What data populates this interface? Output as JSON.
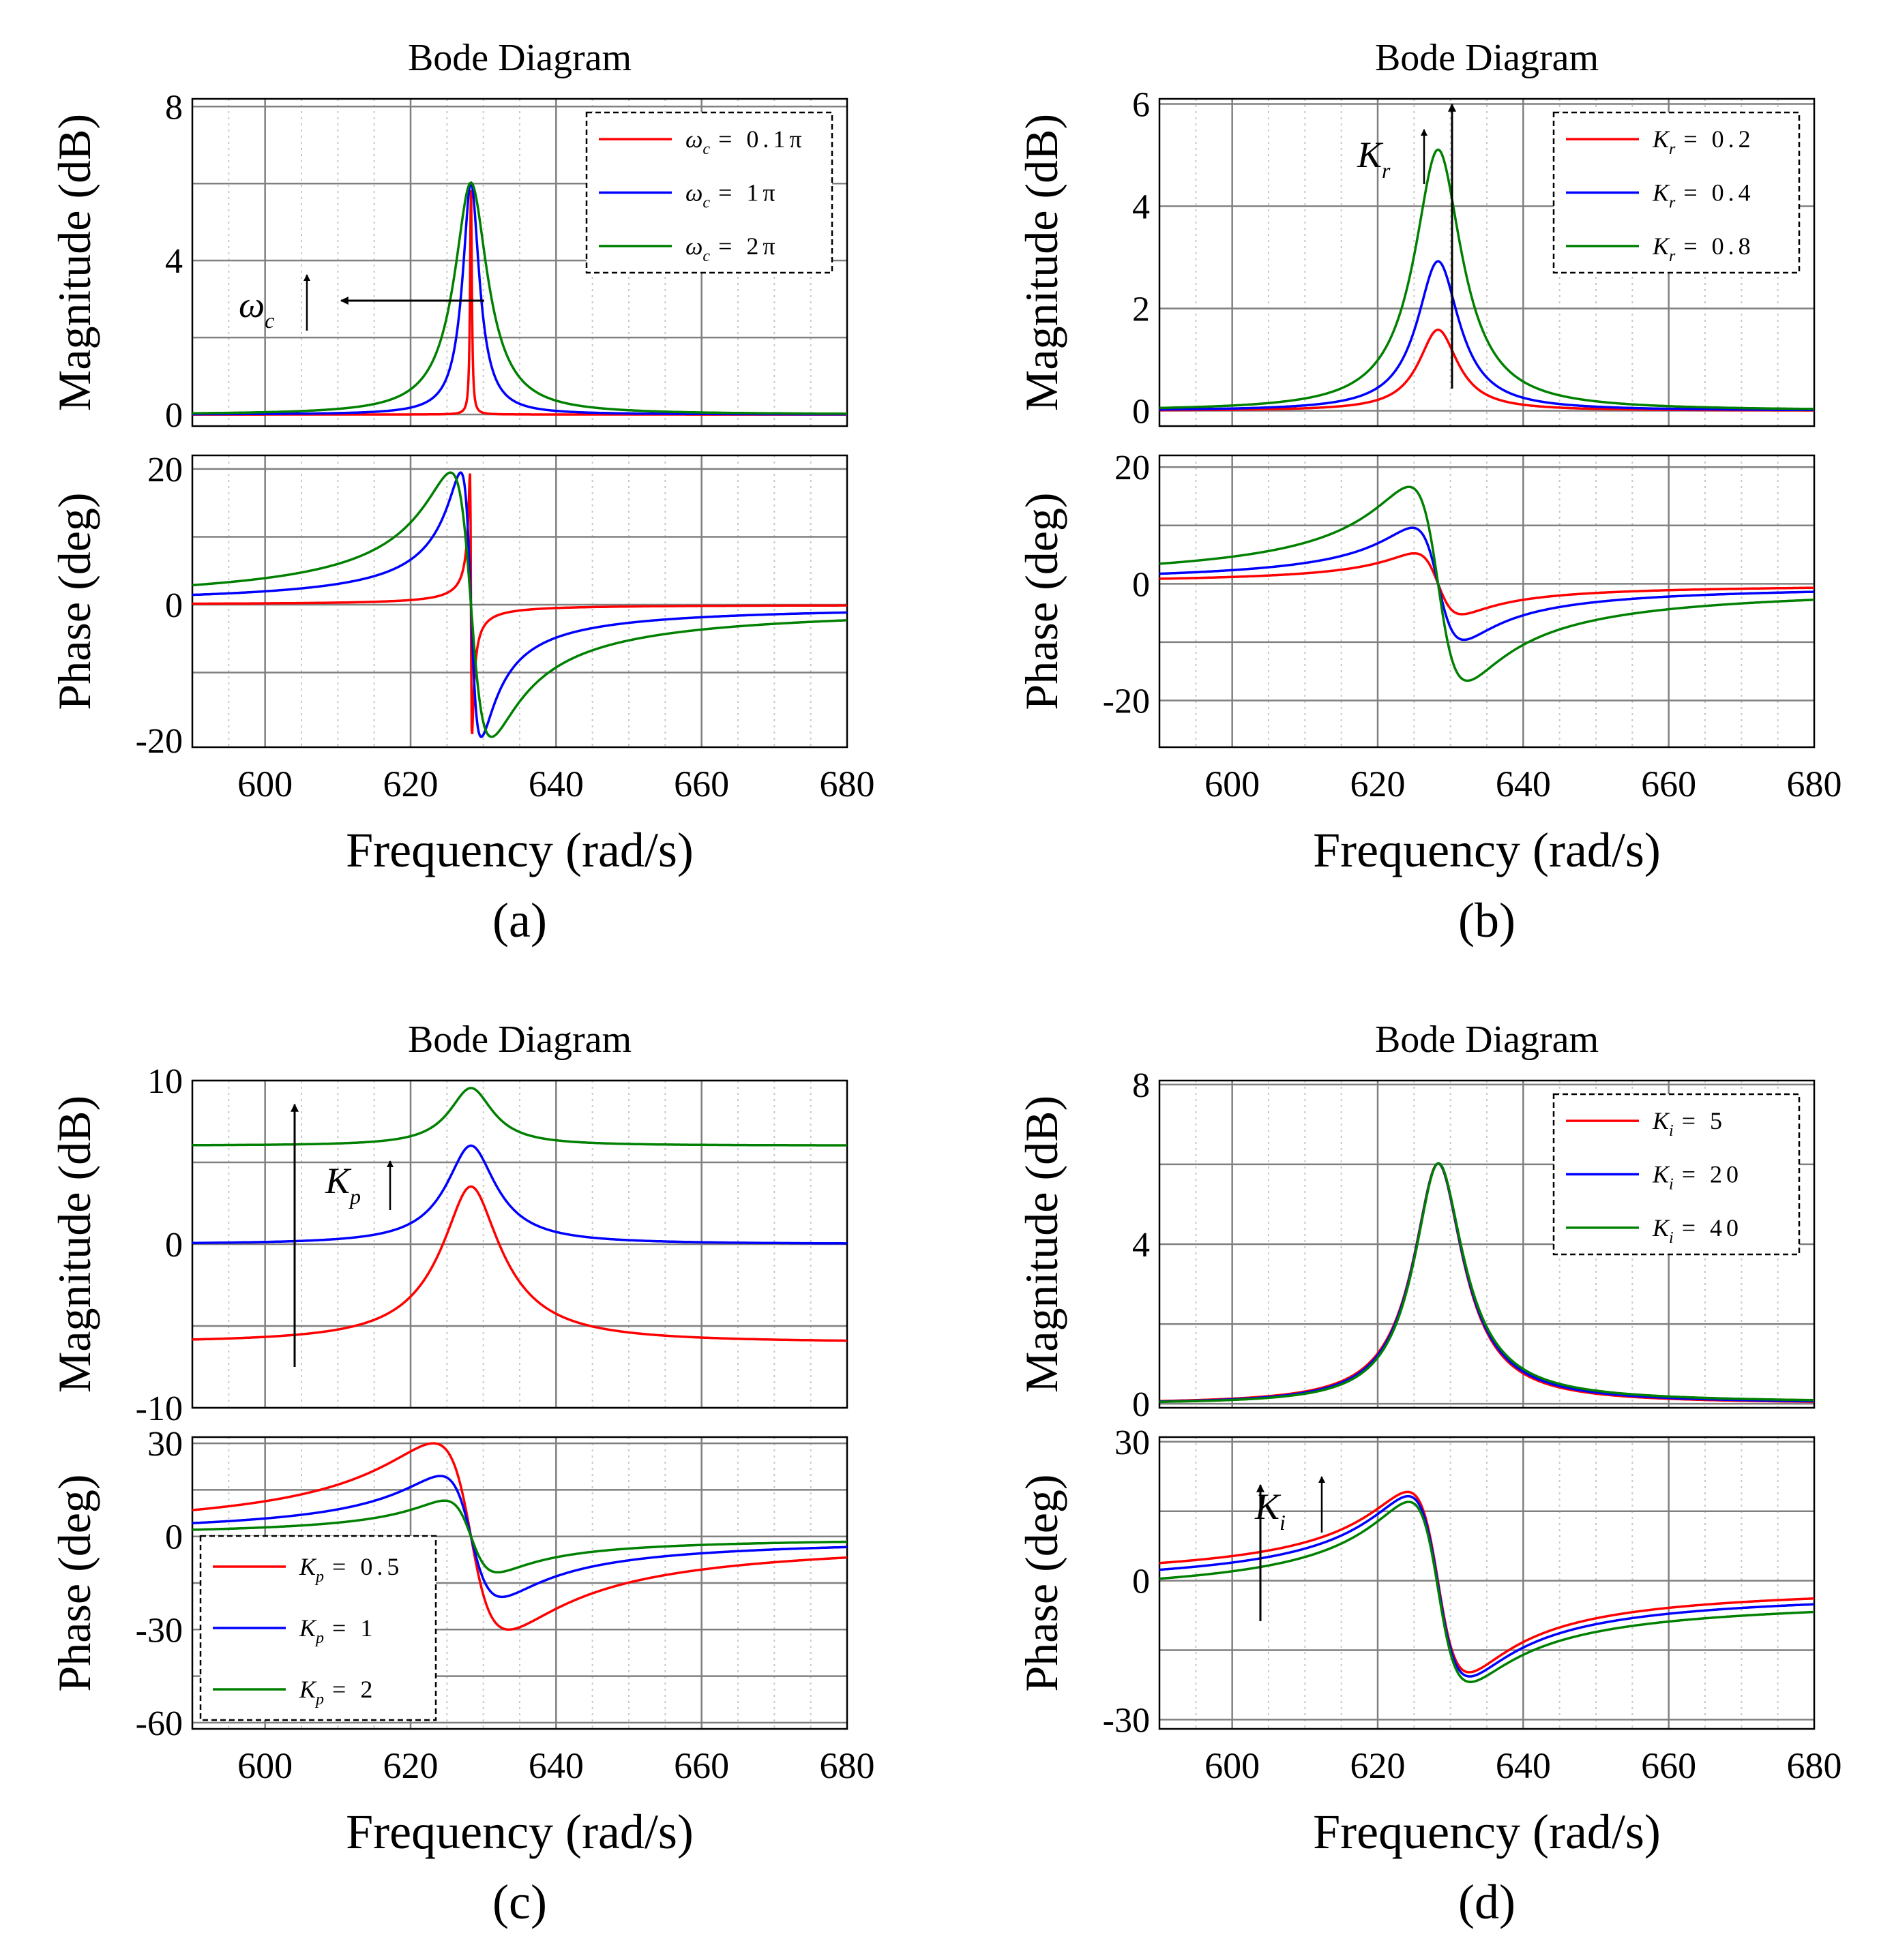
{
  "figure": {
    "subtitles": [
      "(a)",
      "(b)",
      "(c)",
      "(d)"
    ]
  },
  "colors": {
    "red": "#ff0000",
    "blue": "#0000ff",
    "green": "#008000",
    "grid": "#808080",
    "minor_grid": "#c8c8c8"
  },
  "chart_data": [
    {
      "id": "a",
      "type": "line",
      "title": "Bode Diagram",
      "subtitle": "(a)",
      "xlabel": "Frequency (rad/s)",
      "xlim": [
        590,
        680
      ],
      "xticks": [
        "600",
        "620",
        "640",
        "660",
        "680"
      ],
      "mag": {
        "ylabel": "Magnitude (dB)",
        "ylim": [
          -0.3,
          8.2
        ],
        "ytick_values": [
          0,
          4,
          8
        ],
        "ytick_labels": [
          "0",
          "4",
          "8"
        ],
        "gridlines": [
          0,
          2,
          4,
          6,
          8
        ]
      },
      "phase": {
        "ylabel": "Phase (deg)",
        "ylim": [
          -21,
          22
        ],
        "ytick_values": [
          -20,
          0,
          20
        ],
        "ytick_labels": [
          "-20",
          "0",
          "20"
        ],
        "gridlines": [
          -10,
          0,
          10,
          20
        ]
      },
      "model": {
        "kind": "wc",
        "w0": 628.3
      },
      "series": [
        {
          "name": "ωc = 0.1π",
          "color": "#ff0000",
          "params": {
            "wc": 0.1
          }
        },
        {
          "name": "ωc = 1π",
          "color": "#0000ff",
          "params": {
            "wc": 1
          }
        },
        {
          "name": "ωc = 2π",
          "color": "#008000",
          "params": {
            "wc": 2
          }
        }
      ],
      "legend": {
        "position": "top-right",
        "entries": [
          {
            "sym": "ω",
            "sub": "c",
            "rest": "= 0.1π"
          },
          {
            "sym": "ω",
            "sub": "c",
            "rest": "= 1π"
          },
          {
            "sym": "ω",
            "sub": "c",
            "rest": "= 2π"
          }
        ]
      },
      "annotations": [
        {
          "sym": "ω",
          "sub": "c",
          "panel": "magnitude"
        }
      ]
    },
    {
      "id": "b",
      "type": "line",
      "title": "Bode Diagram",
      "subtitle": "(b)",
      "xlabel": "Frequency (rad/s)",
      "xlim": [
        590,
        680
      ],
      "xticks": [
        "600",
        "620",
        "640",
        "660",
        "680"
      ],
      "mag": {
        "ylabel": "Magnitude (dB)",
        "ylim": [
          -0.3,
          6.1
        ],
        "ytick_values": [
          0,
          2,
          4,
          6
        ],
        "ytick_labels": [
          "0",
          "2",
          "4",
          "6"
        ],
        "gridlines": [
          0,
          2,
          4,
          6
        ]
      },
      "phase": {
        "ylabel": "Phase (deg)",
        "ylim": [
          -28,
          22
        ],
        "ytick_values": [
          -20,
          0,
          20
        ],
        "ytick_labels": [
          "-20",
          "0",
          "20"
        ],
        "gridlines": [
          -20,
          -10,
          0,
          10,
          20
        ]
      },
      "model": {
        "kind": "kr",
        "w0": 628.3
      },
      "series": [
        {
          "name": "Kr = 0.2",
          "color": "#ff0000",
          "params": {
            "kr": 0.2
          }
        },
        {
          "name": "Kr = 0.4",
          "color": "#0000ff",
          "params": {
            "kr": 0.4
          }
        },
        {
          "name": "Kr = 0.8",
          "color": "#008000",
          "params": {
            "kr": 0.8
          }
        }
      ],
      "legend": {
        "position": "top-right",
        "entries": [
          {
            "sym": "K",
            "sub": "r",
            "rest": "= 0.2"
          },
          {
            "sym": "K",
            "sub": "r",
            "rest": "= 0.4"
          },
          {
            "sym": "K",
            "sub": "r",
            "rest": "= 0.8"
          }
        ]
      },
      "annotations": [
        {
          "sym": "K",
          "sub": "r",
          "panel": "magnitude"
        }
      ]
    },
    {
      "id": "c",
      "type": "line",
      "title": "Bode Diagram",
      "subtitle": "(c)",
      "xlabel": "Frequency (rad/s)",
      "xlim": [
        590,
        680
      ],
      "xticks": [
        "600",
        "620",
        "640",
        "660",
        "680"
      ],
      "mag": {
        "ylabel": "Magnitude (dB)",
        "ylim": [
          -10,
          10
        ],
        "ytick_values": [
          -10,
          0,
          10
        ],
        "ytick_labels": [
          "-10",
          "0",
          "10"
        ],
        "gridlines": [
          -10,
          -5,
          0,
          5,
          10
        ]
      },
      "phase": {
        "ylabel": "Phase (deg)",
        "ylim": [
          -62,
          32
        ],
        "ytick_values": [
          -60,
          -30,
          0,
          30
        ],
        "ytick_labels": [
          "-60",
          "-30",
          "0",
          "30"
        ],
        "gridlines": [
          -60,
          -45,
          -30,
          -15,
          0,
          15,
          30
        ]
      },
      "model": {
        "kind": "kp",
        "w0": 628.3
      },
      "series": [
        {
          "name": "Kp = 0.5",
          "color": "#ff0000",
          "params": {
            "kp": 0.5
          }
        },
        {
          "name": "Kp = 1",
          "color": "#0000ff",
          "params": {
            "kp": 1
          }
        },
        {
          "name": "Kp = 2",
          "color": "#008000",
          "params": {
            "kp": 2
          }
        }
      ],
      "legend": {
        "position": "bottom-left",
        "entries": [
          {
            "sym": "K",
            "sub": "p",
            "rest": "= 0.5"
          },
          {
            "sym": "K",
            "sub": "p",
            "rest": "= 1"
          },
          {
            "sym": "K",
            "sub": "p",
            "rest": "= 2"
          }
        ]
      },
      "annotations": [
        {
          "sym": "K",
          "sub": "p",
          "panel": "magnitude"
        }
      ]
    },
    {
      "id": "d",
      "type": "line",
      "title": "Bode Diagram",
      "subtitle": "(d)",
      "xlabel": "Frequency (rad/s)",
      "xlim": [
        590,
        680
      ],
      "xticks": [
        "600",
        "620",
        "640",
        "660",
        "680"
      ],
      "mag": {
        "ylabel": "Magnitude (dB)",
        "ylim": [
          -0.1,
          8.1
        ],
        "ytick_values": [
          0,
          4,
          8
        ],
        "ytick_labels": [
          "0",
          "4",
          "8"
        ],
        "gridlines": [
          0,
          2,
          4,
          6,
          8
        ]
      },
      "phase": {
        "ylabel": "Phase (deg)",
        "ylim": [
          -32,
          31
        ],
        "ytick_values": [
          -30,
          0,
          30
        ],
        "ytick_labels": [
          "-30",
          "0",
          "30"
        ],
        "gridlines": [
          -30,
          -15,
          0,
          15,
          30
        ]
      },
      "model": {
        "kind": "ki",
        "w0": 628.3
      },
      "series": [
        {
          "name": "Ki = 5",
          "color": "#ff0000",
          "params": {
            "ki": 5
          }
        },
        {
          "name": "Ki = 20",
          "color": "#0000ff",
          "params": {
            "ki": 20
          }
        },
        {
          "name": "Ki = 40",
          "color": "#008000",
          "params": {
            "ki": 40
          }
        }
      ],
      "legend": {
        "position": "top-right",
        "entries": [
          {
            "sym": "K",
            "sub": "i",
            "rest": "= 5"
          },
          {
            "sym": "K",
            "sub": "i",
            "rest": "= 20"
          },
          {
            "sym": "K",
            "sub": "i",
            "rest": "= 40"
          }
        ]
      },
      "annotations": [
        {
          "sym": "K",
          "sub": "i",
          "panel": "phase"
        }
      ]
    }
  ]
}
